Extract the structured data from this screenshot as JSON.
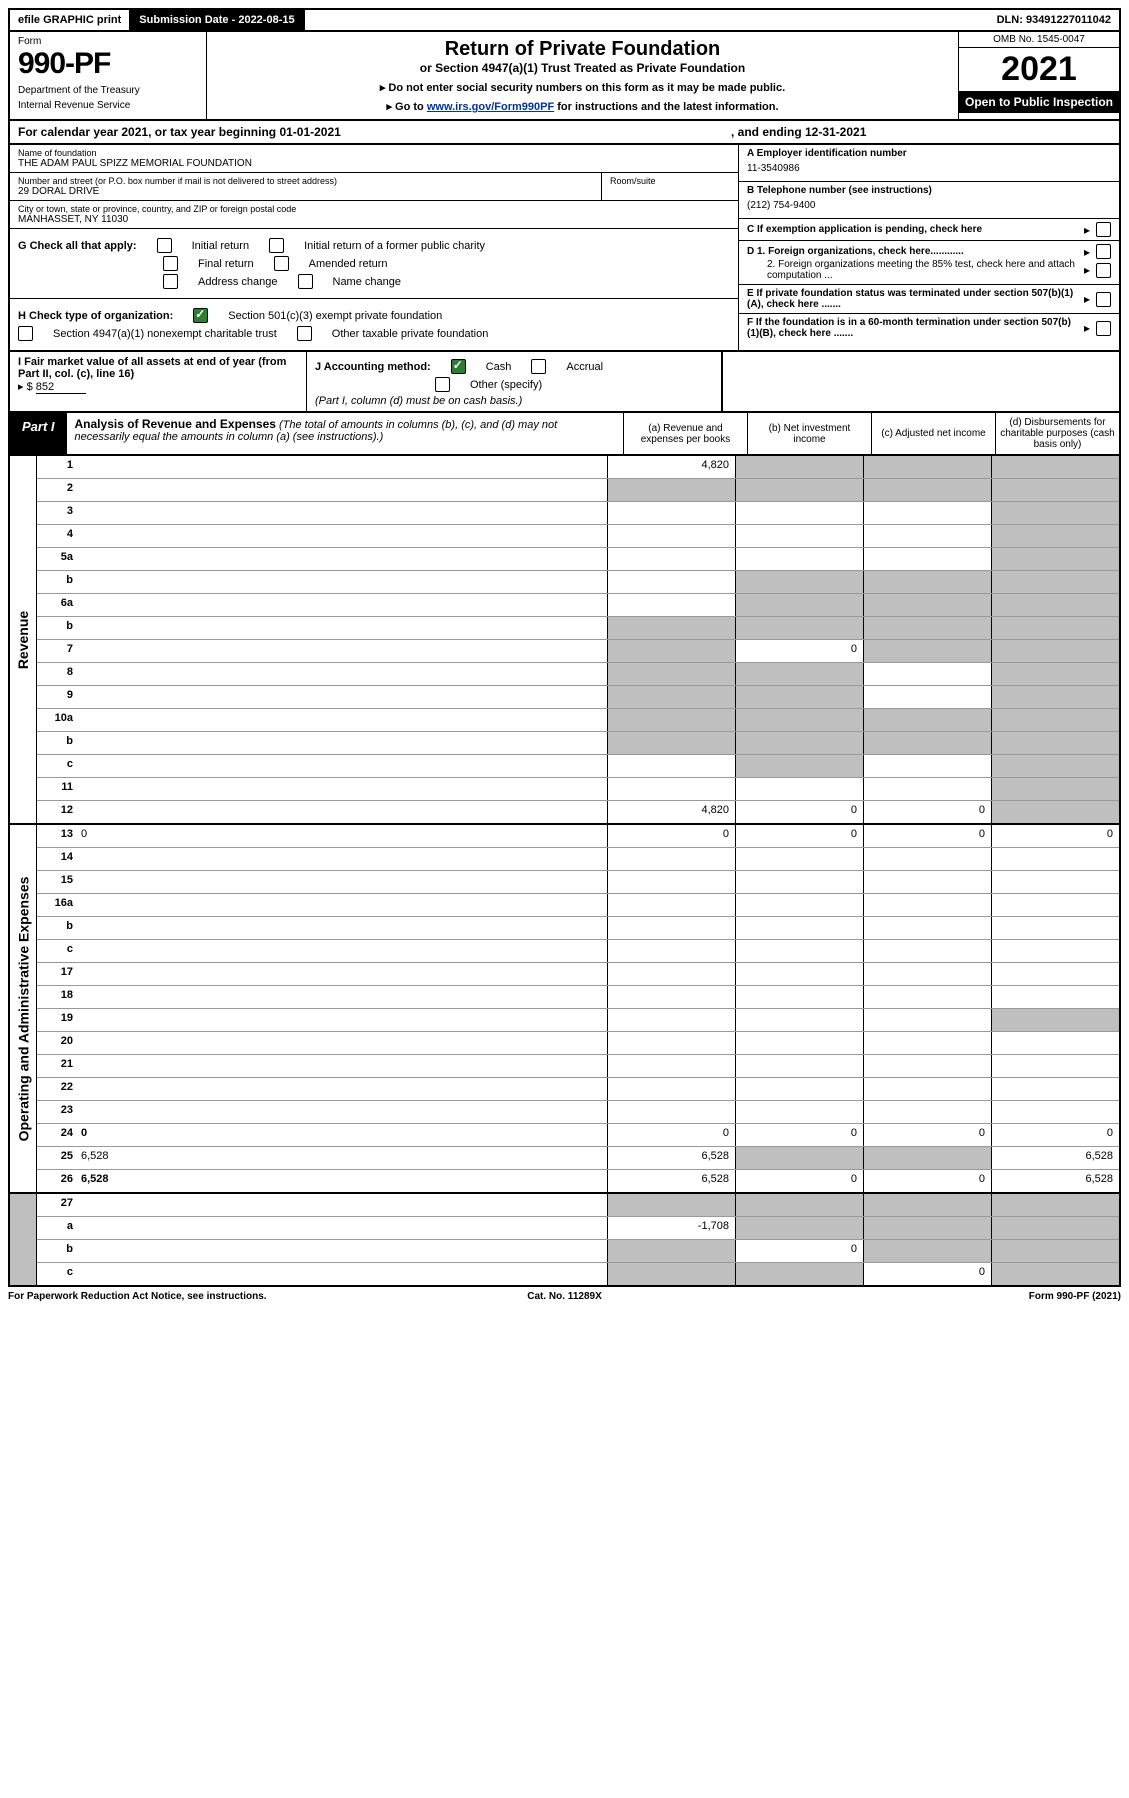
{
  "topbar": {
    "efile": "efile GRAPHIC print",
    "submission_label": "Submission Date",
    "submission_date": "2022-08-15",
    "dln_label": "DLN:",
    "dln": "93491227011042"
  },
  "header": {
    "form_label": "Form",
    "form_number": "990-PF",
    "dept1": "Department of the Treasury",
    "dept2": "Internal Revenue Service",
    "title": "Return of Private Foundation",
    "subtitle": "or Section 4947(a)(1) Trust Treated as Private Foundation",
    "instr1": "▸ Do not enter social security numbers on this form as it may be made public.",
    "instr2_pre": "▸ Go to ",
    "instr2_link": "www.irs.gov/Form990PF",
    "instr2_post": " for instructions and the latest information.",
    "omb": "OMB No. 1545-0047",
    "year": "2021",
    "open": "Open to Public Inspection"
  },
  "calyear": {
    "text_left": "For calendar year 2021, or tax year beginning 01-01-2021",
    "text_right": ", and ending 12-31-2021"
  },
  "entity": {
    "name_label": "Name of foundation",
    "name": "THE ADAM PAUL SPIZZ MEMORIAL FOUNDATION",
    "addr_label": "Number and street (or P.O. box number if mail is not delivered to street address)",
    "addr": "29 DORAL DRIVE",
    "suite_label": "Room/suite",
    "city_label": "City or town, state or province, country, and ZIP or foreign postal code",
    "city": "MANHASSET, NY  11030",
    "ein_label": "A Employer identification number",
    "ein": "11-3540986",
    "phone_label": "B Telephone number (see instructions)",
    "phone": "(212) 754-9400",
    "c_label": "C If exemption application is pending, check here",
    "d1_label": "D 1. Foreign organizations, check here............",
    "d2_label": "2. Foreign organizations meeting the 85% test, check here and attach computation ...",
    "e_label": "E If private foundation status was terminated under section 507(b)(1)(A), check here .......",
    "f_label": "F If the foundation is in a 60-month termination under section 507(b)(1)(B), check here ......."
  },
  "checks": {
    "g_label": "G Check all that apply:",
    "initial": "Initial return",
    "initial_former": "Initial return of a former public charity",
    "final": "Final return",
    "amended": "Amended return",
    "addr_change": "Address change",
    "name_change": "Name change",
    "h_label": "H Check type of organization:",
    "h_501c3": "Section 501(c)(3) exempt private foundation",
    "h_4947": "Section 4947(a)(1) nonexempt charitable trust",
    "h_other": "Other taxable private foundation",
    "i_label": "I Fair market value of all assets at end of year (from Part II, col. (c), line 16)",
    "i_prefix": "▸ $",
    "i_value": "852",
    "j_label": "J Accounting method:",
    "j_cash": "Cash",
    "j_accrual": "Accrual",
    "j_other": "Other (specify)",
    "j_note": "(Part I, column (d) must be on cash basis.)"
  },
  "part1": {
    "label": "Part I",
    "title": "Analysis of Revenue and Expenses",
    "title_sub": "(The total of amounts in columns (b), (c), and (d) may not necessarily equal the amounts in column (a) (see instructions).)",
    "col_a": "(a) Revenue and expenses per books",
    "col_b": "(b) Net investment income",
    "col_c": "(c) Adjusted net income",
    "col_d": "(d) Disbursements for charitable purposes (cash basis only)"
  },
  "sections": {
    "revenue": "Revenue",
    "expenses": "Operating and Administrative Expenses"
  },
  "rows": [
    {
      "n": "1",
      "d": "",
      "a": "4,820",
      "b": "",
      "c": "",
      "sb": true,
      "sc": true,
      "sd": true
    },
    {
      "n": "2",
      "d": "",
      "a": "",
      "b": "",
      "c": "",
      "na": true
    },
    {
      "n": "3",
      "d": "",
      "a": "",
      "b": "",
      "c": "",
      "sd": true
    },
    {
      "n": "4",
      "d": "",
      "a": "",
      "b": "",
      "c": "",
      "sd": true
    },
    {
      "n": "5a",
      "d": "",
      "a": "",
      "b": "",
      "c": "",
      "sd": true
    },
    {
      "n": "b",
      "d": "",
      "a": "",
      "b": "",
      "c": "",
      "sb": true,
      "sc": true,
      "sd": true
    },
    {
      "n": "6a",
      "d": "",
      "a": "",
      "b": "",
      "c": "",
      "sb": true,
      "sc": true,
      "sd": true
    },
    {
      "n": "b",
      "d": "",
      "a": "",
      "b": "",
      "c": "",
      "sa": true,
      "sb": true,
      "sc": true,
      "sd": true
    },
    {
      "n": "7",
      "d": "",
      "a": "",
      "b": "0",
      "c": "",
      "sa": true,
      "sc": true,
      "sd": true
    },
    {
      "n": "8",
      "d": "",
      "a": "",
      "b": "",
      "c": "",
      "sa": true,
      "sb": true,
      "sd": true
    },
    {
      "n": "9",
      "d": "",
      "a": "",
      "b": "",
      "c": "",
      "sa": true,
      "sb": true,
      "sd": true
    },
    {
      "n": "10a",
      "d": "",
      "a": "",
      "b": "",
      "c": "",
      "sa": true,
      "sb": true,
      "sc": true,
      "sd": true
    },
    {
      "n": "b",
      "d": "",
      "a": "",
      "b": "",
      "c": "",
      "sa": true,
      "sb": true,
      "sc": true,
      "sd": true
    },
    {
      "n": "c",
      "d": "",
      "a": "",
      "b": "",
      "c": "",
      "sb": true,
      "sd": true
    },
    {
      "n": "11",
      "d": "",
      "a": "",
      "b": "",
      "c": "",
      "sd": true
    },
    {
      "n": "12",
      "d": "",
      "a": "4,820",
      "b": "0",
      "c": "0",
      "sd": true,
      "bold": true
    }
  ],
  "exp_rows": [
    {
      "n": "13",
      "d": "0",
      "a": "0",
      "b": "0",
      "c": "0"
    },
    {
      "n": "14",
      "d": "",
      "a": "",
      "b": "",
      "c": ""
    },
    {
      "n": "15",
      "d": "",
      "a": "",
      "b": "",
      "c": ""
    },
    {
      "n": "16a",
      "d": "",
      "a": "",
      "b": "",
      "c": ""
    },
    {
      "n": "b",
      "d": "",
      "a": "",
      "b": "",
      "c": ""
    },
    {
      "n": "c",
      "d": "",
      "a": "",
      "b": "",
      "c": ""
    },
    {
      "n": "17",
      "d": "",
      "a": "",
      "b": "",
      "c": ""
    },
    {
      "n": "18",
      "d": "",
      "a": "",
      "b": "",
      "c": ""
    },
    {
      "n": "19",
      "d": "",
      "a": "",
      "b": "",
      "c": "",
      "sd": true
    },
    {
      "n": "20",
      "d": "",
      "a": "",
      "b": "",
      "c": ""
    },
    {
      "n": "21",
      "d": "",
      "a": "",
      "b": "",
      "c": ""
    },
    {
      "n": "22",
      "d": "",
      "a": "",
      "b": "",
      "c": ""
    },
    {
      "n": "23",
      "d": "",
      "a": "",
      "b": "",
      "c": ""
    },
    {
      "n": "24",
      "d": "0",
      "a": "0",
      "b": "0",
      "c": "0",
      "bold": true
    },
    {
      "n": "25",
      "d": "6,528",
      "a": "6,528",
      "b": "",
      "c": "",
      "sb": true,
      "sc": true
    },
    {
      "n": "26",
      "d": "6,528",
      "a": "6,528",
      "b": "0",
      "c": "0",
      "bold": true
    }
  ],
  "bottom_rows": [
    {
      "n": "27",
      "d": "",
      "a": "",
      "b": "",
      "c": "",
      "sa": true,
      "sb": true,
      "sc": true,
      "sd": true
    },
    {
      "n": "a",
      "d": "",
      "a": "-1,708",
      "b": "",
      "c": "",
      "bold": true,
      "sb": true,
      "sc": true,
      "sd": true
    },
    {
      "n": "b",
      "d": "",
      "a": "",
      "b": "0",
      "c": "",
      "bold": true,
      "sa": true,
      "sc": true,
      "sd": true
    },
    {
      "n": "c",
      "d": "",
      "a": "",
      "b": "",
      "c": "0",
      "bold": true,
      "sa": true,
      "sb": true,
      "sd": true
    }
  ],
  "footer": {
    "left": "For Paperwork Reduction Act Notice, see instructions.",
    "center": "Cat. No. 11289X",
    "right": "Form 990-PF (2021)"
  },
  "colors": {
    "shaded": "#bfbfbf",
    "check_green": "#2e7d32",
    "link": "#003399"
  }
}
